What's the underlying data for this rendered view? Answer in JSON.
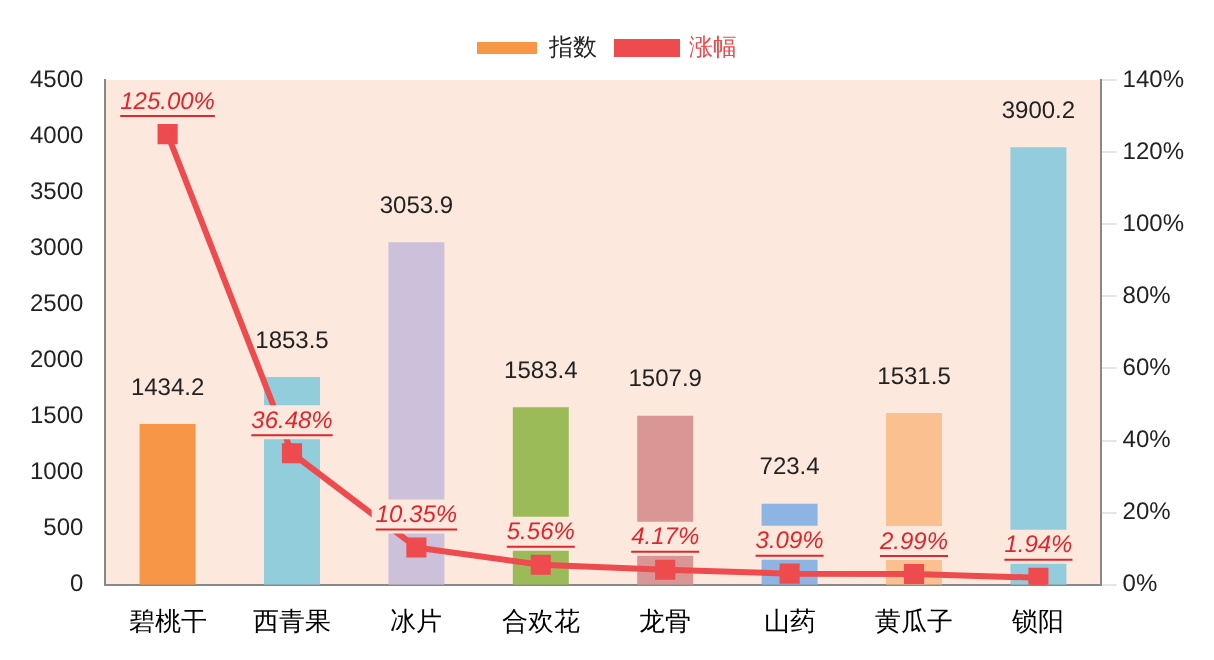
{
  "chart_data": {
    "type": "bar",
    "categories": [
      "碧桃干",
      "西青果",
      "冰片",
      "合欢花",
      "龙骨",
      "山药",
      "黄瓜子",
      "锁阳"
    ],
    "series": [
      {
        "name": "指数",
        "color": "#f79646",
        "colors": [
          "#f79646",
          "#92cddc",
          "#ccc0da",
          "#9bbb59",
          "#d99694",
          "#8eb4e3",
          "#fac090",
          "#93cddd"
        ],
        "values": [
          1434.2,
          1853.5,
          3053.9,
          1583.4,
          1507.9,
          723.4,
          1531.5,
          3900.2
        ],
        "value_labels": [
          "1434.2",
          "1853.5",
          "3053.9",
          "1583.4",
          "1507.9",
          "723.4",
          "1531.5",
          "3900.2"
        ]
      },
      {
        "name": "涨幅",
        "type": "line",
        "axis": "y2",
        "color": "#ee4b4f",
        "values": [
          125.0,
          36.48,
          10.35,
          5.56,
          4.17,
          3.09,
          2.99,
          1.94
        ],
        "value_labels": [
          "125.00%",
          "36.48%",
          "10.35%",
          "5.56%",
          "4.17%",
          "3.09%",
          "2.99%",
          "1.94%"
        ]
      }
    ],
    "ylim": [
      0,
      4500
    ],
    "yticks": [
      0,
      500,
      1000,
      1500,
      2000,
      2500,
      3000,
      3500,
      4000,
      4500
    ],
    "y2lim": [
      0,
      140
    ],
    "y2ticks": [
      {
        "value": 0,
        "label": "0%"
      },
      {
        "value": 20,
        "label": "20%"
      },
      {
        "value": 40,
        "label": "40%"
      },
      {
        "value": 60,
        "label": "60%"
      },
      {
        "value": 80,
        "label": "80%"
      },
      {
        "value": 100,
        "label": "100%"
      },
      {
        "value": 120,
        "label": "120%"
      },
      {
        "value": 140,
        "label": "140%"
      }
    ],
    "legend": "top",
    "grid": false,
    "marker": "square",
    "line_style": "solid"
  }
}
